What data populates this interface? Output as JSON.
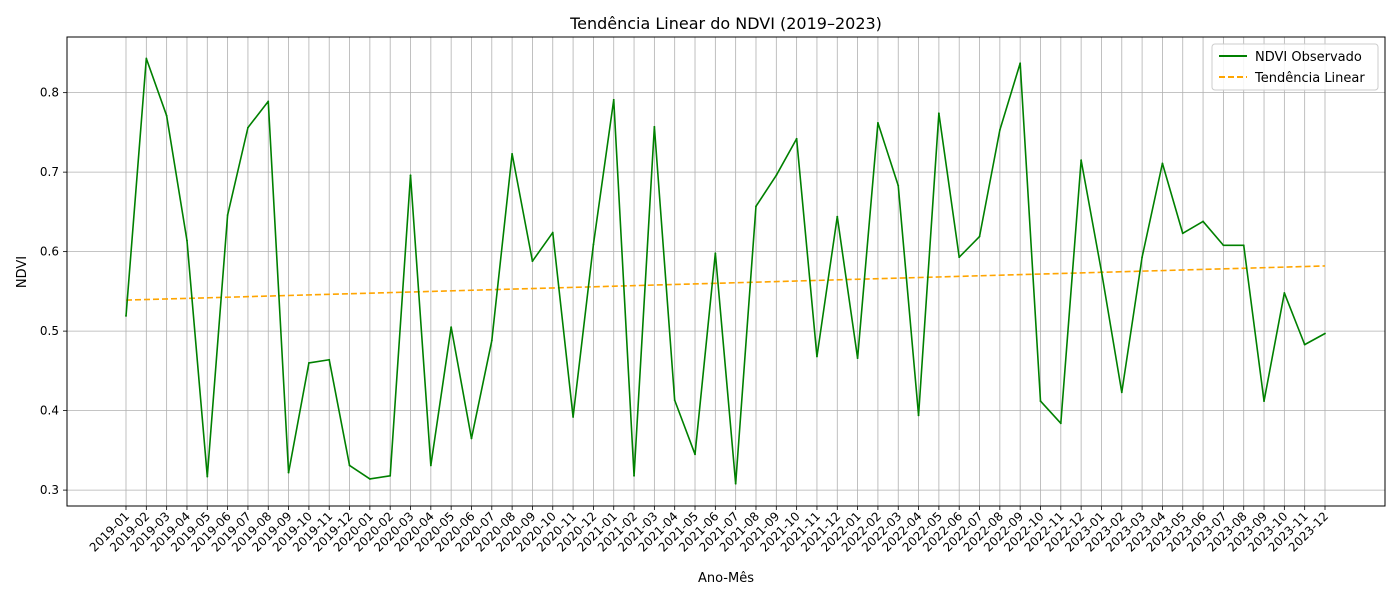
{
  "chart_data": {
    "type": "line",
    "title": "Tendência Linear do NDVI (2019–2023)",
    "xlabel": "Ano-Mês",
    "ylabel": "NDVI",
    "ylim": [
      0.28,
      0.87
    ],
    "yticks": [
      "0.3",
      "0.4",
      "0.5",
      "0.6",
      "0.7",
      "0.8"
    ],
    "grid": true,
    "legend_position": "top-right",
    "categories": [
      "2019-01",
      "2019-02",
      "2019-03",
      "2019-04",
      "2019-05",
      "2019-06",
      "2019-07",
      "2019-08",
      "2019-09",
      "2019-10",
      "2019-11",
      "2019-12",
      "2020-01",
      "2020-02",
      "2020-03",
      "2020-04",
      "2020-05",
      "2020-06",
      "2020-07",
      "2020-08",
      "2020-09",
      "2020-10",
      "2020-11",
      "2020-12",
      "2021-01",
      "2021-02",
      "2021-03",
      "2021-04",
      "2021-05",
      "2021-06",
      "2021-07",
      "2021-08",
      "2021-09",
      "2021-10",
      "2021-11",
      "2021-12",
      "2022-01",
      "2022-02",
      "2022-03",
      "2022-04",
      "2022-05",
      "2022-06",
      "2022-07",
      "2022-08",
      "2022-09",
      "2022-10",
      "2022-11",
      "2022-12",
      "2023-01",
      "2023-02",
      "2023-03",
      "2023-04",
      "2023-05",
      "2023-06",
      "2023-07",
      "2023-08",
      "2023-09",
      "2023-10",
      "2023-11",
      "2023-12"
    ],
    "series": [
      {
        "name": "NDVI Observado",
        "color": "#008000",
        "style": "solid",
        "values": [
          0.519,
          0.843,
          0.771,
          0.614,
          0.317,
          0.646,
          0.756,
          0.789,
          0.322,
          0.46,
          0.464,
          0.331,
          0.314,
          0.318,
          0.696,
          0.331,
          0.505,
          0.365,
          0.488,
          0.723,
          0.588,
          0.624,
          0.392,
          0.609,
          0.791,
          0.318,
          0.757,
          0.413,
          0.345,
          0.598,
          0.308,
          0.657,
          0.696,
          0.742,
          0.468,
          0.644,
          0.466,
          0.762,
          0.683,
          0.394,
          0.774,
          0.593,
          0.619,
          0.753,
          0.837,
          0.412,
          0.384,
          0.715,
          0.575,
          0.423,
          0.593,
          0.711,
          0.623,
          0.638,
          0.608,
          0.608,
          0.412,
          0.548,
          0.483,
          0.497
        ]
      },
      {
        "name": "Tendência Linear",
        "color": "#ffa500",
        "style": "dashed",
        "start": 0.539,
        "end": 0.582
      }
    ]
  }
}
